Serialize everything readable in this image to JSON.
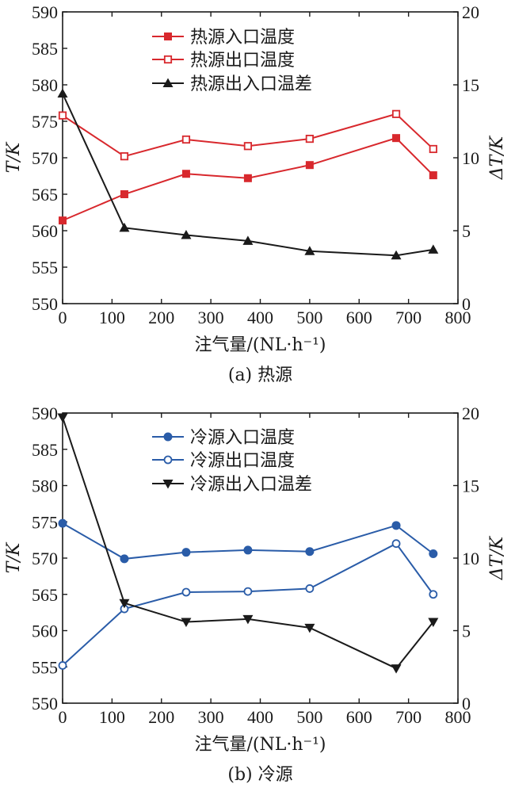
{
  "chart_data": [
    {
      "type": "line",
      "caption": "(a) 热源",
      "xlabel": "注气量/(NL·h⁻¹)",
      "ylabel_left": "T/K",
      "ylabel_right": "ΔT/K",
      "xlim": [
        0,
        800
      ],
      "ylim_left": [
        550,
        590
      ],
      "ylim_right": [
        0,
        20
      ],
      "x_ticks": [
        0,
        100,
        200,
        300,
        400,
        500,
        600,
        700,
        800
      ],
      "y_left_ticks": [
        550,
        555,
        560,
        565,
        570,
        575,
        580,
        585,
        590
      ],
      "y_right_ticks": [
        0,
        5,
        10,
        15,
        20
      ],
      "x": [
        0,
        125,
        250,
        375,
        500,
        675,
        750
      ],
      "series": [
        {
          "name": "热源入口温度",
          "axis": "left",
          "color": "#d8282d",
          "marker": "square-filled",
          "values": [
            561.4,
            565.0,
            567.8,
            567.2,
            569.0,
            572.7,
            567.6
          ]
        },
        {
          "name": "热源出口温度",
          "axis": "left",
          "color": "#d8282d",
          "marker": "square-open",
          "values": [
            575.8,
            570.2,
            572.5,
            571.6,
            572.6,
            576.0,
            571.2
          ]
        },
        {
          "name": "热源出入口温差",
          "axis": "right",
          "color": "#1a1a1a",
          "marker": "triangle-up",
          "values": [
            14.4,
            5.2,
            4.7,
            4.3,
            3.6,
            3.3,
            3.7
          ]
        }
      ]
    },
    {
      "type": "line",
      "caption": "(b) 冷源",
      "xlabel": "注气量/(NL·h⁻¹)",
      "ylabel_left": "T/K",
      "ylabel_right": "ΔT/K",
      "xlim": [
        0,
        800
      ],
      "ylim_left": [
        550,
        590
      ],
      "ylim_right": [
        0,
        20
      ],
      "x_ticks": [
        0,
        100,
        200,
        300,
        400,
        500,
        600,
        700,
        800
      ],
      "y_left_ticks": [
        550,
        555,
        560,
        565,
        570,
        575,
        580,
        585,
        590
      ],
      "y_right_ticks": [
        0,
        5,
        10,
        15,
        20
      ],
      "x": [
        0,
        125,
        250,
        375,
        500,
        675,
        750
      ],
      "series": [
        {
          "name": "冷源入口温度",
          "axis": "left",
          "color": "#2a5ca8",
          "marker": "circle-filled",
          "values": [
            574.8,
            569.9,
            570.8,
            571.1,
            570.9,
            574.5,
            570.6
          ]
        },
        {
          "name": "冷源出口温度",
          "axis": "left",
          "color": "#2a5ca8",
          "marker": "circle-open",
          "values": [
            555.2,
            563.0,
            565.3,
            565.4,
            565.8,
            572.0,
            565.0
          ]
        },
        {
          "name": "冷源出入口温差",
          "axis": "right",
          "color": "#1a1a1a",
          "marker": "triangle-down",
          "values": [
            19.7,
            6.9,
            5.6,
            5.8,
            5.2,
            2.4,
            5.6
          ]
        }
      ]
    }
  ]
}
